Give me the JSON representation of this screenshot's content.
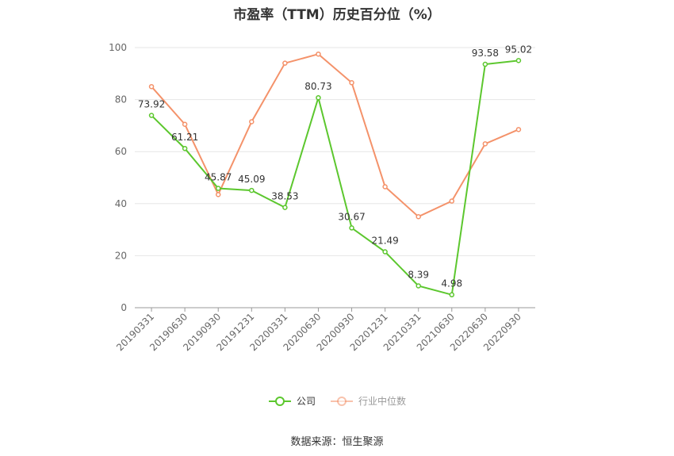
{
  "chart_data": {
    "type": "line",
    "title": "市盈率（TTM）历史百分位（%）",
    "categories": [
      "20190331",
      "20190630",
      "20190930",
      "20191231",
      "20200331",
      "20200630",
      "20200930",
      "20201231",
      "20210331",
      "20210630",
      "20220630",
      "20220930"
    ],
    "series": [
      {
        "name": "公司",
        "color": "#5cc72e",
        "values": [
          73.92,
          61.21,
          45.87,
          45.09,
          38.53,
          80.73,
          30.67,
          21.49,
          8.39,
          4.98,
          93.58,
          95.02
        ],
        "labels": [
          "73.92",
          "61.21",
          "45.87",
          "45.09",
          "38.53",
          "80.73",
          "30.67",
          "21.49",
          "8.39",
          "4.98",
          "93.58",
          "95.02"
        ],
        "show_labels": true
      },
      {
        "name": "行业中位数",
        "color": "#f4926a",
        "values": [
          85.0,
          70.5,
          43.5,
          71.5,
          94.0,
          97.5,
          86.5,
          46.5,
          35.0,
          41.0,
          63.0,
          68.5
        ],
        "show_labels": false
      }
    ],
    "ylim": [
      0,
      100
    ],
    "yticks": [
      "0",
      "20",
      "40",
      "60",
      "80",
      "100"
    ],
    "grid": true,
    "legend_position": "bottom"
  },
  "legend": {
    "items": [
      {
        "label": "公司",
        "color": "#5cc72e"
      },
      {
        "label": "行业中位数",
        "color": "#f4926a"
      }
    ]
  },
  "source": "数据来源：恒生聚源"
}
